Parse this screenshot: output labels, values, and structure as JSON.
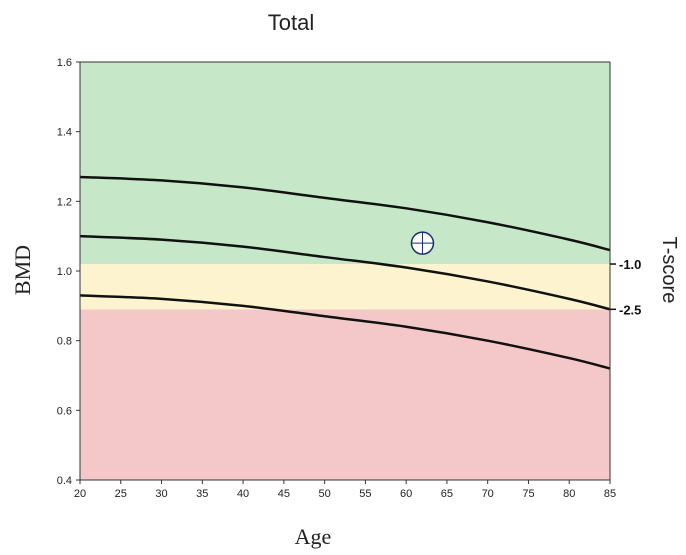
{
  "chart_data": {
    "type": "line",
    "title": "Total",
    "xlabel": "Age",
    "ylabel": "BMD",
    "y2label": "T-score",
    "xlim": [
      20,
      85
    ],
    "ylim": [
      0.4,
      1.6
    ],
    "x_ticks": [
      20,
      25,
      30,
      35,
      40,
      45,
      50,
      55,
      60,
      65,
      70,
      75,
      80,
      85
    ],
    "y_ticks": [
      "0.4",
      "0.6",
      "0.8",
      "1.0",
      "1.2",
      "1.4",
      "1.6"
    ],
    "bands": [
      {
        "from": 0.4,
        "to": 0.89,
        "color": "#f4c8c8"
      },
      {
        "from": 0.89,
        "to": 1.02,
        "color": "#fdf4cf"
      },
      {
        "from": 1.02,
        "to": 1.6,
        "color": "#c6e8c8"
      }
    ],
    "t_score_labels": [
      {
        "label": "-1.0",
        "y": 1.02
      },
      {
        "label": "-2.5",
        "y": 0.89
      }
    ],
    "series": [
      {
        "x": [
          20,
          30,
          40,
          50,
          60,
          70,
          80,
          85
        ],
        "values": [
          1.27,
          1.26,
          1.24,
          1.21,
          1.18,
          1.14,
          1.09,
          1.06
        ]
      },
      {
        "x": [
          20,
          30,
          40,
          50,
          60,
          70,
          80,
          85
        ],
        "values": [
          1.1,
          1.09,
          1.07,
          1.04,
          1.01,
          0.97,
          0.92,
          0.89
        ]
      },
      {
        "x": [
          20,
          30,
          40,
          50,
          60,
          70,
          80,
          85
        ],
        "values": [
          0.93,
          0.92,
          0.9,
          0.87,
          0.84,
          0.8,
          0.75,
          0.72
        ]
      }
    ],
    "patient_point": {
      "x": 62,
      "y": 1.08
    },
    "grid": false
  }
}
